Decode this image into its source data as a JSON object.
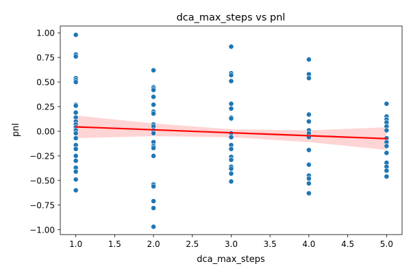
{
  "chart_data": {
    "type": "scatter",
    "title": "dca_max_steps vs pnl",
    "xlabel": "dca_max_steps",
    "ylabel": "pnl",
    "xlim": [
      0.8,
      5.2
    ],
    "ylim": [
      -1.05,
      1.07
    ],
    "xticks": [
      "1.0",
      "1.5",
      "2.0",
      "2.5",
      "3.0",
      "3.5",
      "4.0",
      "4.5",
      "5.0"
    ],
    "yticks": [
      "-1.00",
      "-0.75",
      "-0.50",
      "-0.25",
      "0.00",
      "0.25",
      "0.50",
      "0.75",
      "1.00"
    ],
    "grid": false,
    "series": [
      {
        "kind": "points",
        "color": "#1f77b4",
        "points": [
          [
            1,
            0.98
          ],
          [
            1,
            0.78
          ],
          [
            1,
            0.76
          ],
          [
            1,
            0.54
          ],
          [
            1,
            0.52
          ],
          [
            1,
            0.5
          ],
          [
            1,
            0.27
          ],
          [
            1,
            0.26
          ],
          [
            1,
            0.19
          ],
          [
            1,
            0.14
          ],
          [
            1,
            0.1
          ],
          [
            1,
            0.07
          ],
          [
            1,
            0.04
          ],
          [
            1,
            0.01
          ],
          [
            1,
            -0.02
          ],
          [
            1,
            -0.07
          ],
          [
            1,
            -0.14
          ],
          [
            1,
            -0.18
          ],
          [
            1,
            -0.25
          ],
          [
            1,
            -0.3
          ],
          [
            1,
            -0.37
          ],
          [
            1,
            -0.41
          ],
          [
            1,
            -0.49
          ],
          [
            1,
            -0.6
          ],
          [
            2,
            0.62
          ],
          [
            2,
            0.45
          ],
          [
            2,
            0.44
          ],
          [
            2,
            0.42
          ],
          [
            2,
            0.35
          ],
          [
            2,
            0.27
          ],
          [
            2,
            0.2
          ],
          [
            2,
            0.18
          ],
          [
            2,
            0.07
          ],
          [
            2,
            0.05
          ],
          [
            2,
            0.01
          ],
          [
            2,
            -0.02
          ],
          [
            2,
            -0.11
          ],
          [
            2,
            -0.15
          ],
          [
            2,
            -0.17
          ],
          [
            2,
            -0.25
          ],
          [
            2,
            -0.54
          ],
          [
            2,
            -0.56
          ],
          [
            2,
            -0.71
          ],
          [
            2,
            -0.78
          ],
          [
            2,
            -0.97
          ],
          [
            3,
            0.86
          ],
          [
            3,
            0.59
          ],
          [
            3,
            0.57
          ],
          [
            3,
            0.51
          ],
          [
            3,
            0.28
          ],
          [
            3,
            0.23
          ],
          [
            3,
            0.14
          ],
          [
            3,
            0.13
          ],
          [
            3,
            -0.02
          ],
          [
            3,
            -0.06
          ],
          [
            3,
            -0.14
          ],
          [
            3,
            -0.18
          ],
          [
            3,
            -0.26
          ],
          [
            3,
            -0.29
          ],
          [
            3,
            -0.36
          ],
          [
            3,
            -0.38
          ],
          [
            3,
            -0.43
          ],
          [
            3,
            -0.51
          ],
          [
            4,
            0.73
          ],
          [
            4,
            0.58
          ],
          [
            4,
            0.54
          ],
          [
            4,
            0.17
          ],
          [
            4,
            0.1
          ],
          [
            4,
            0.01
          ],
          [
            4,
            -0.02
          ],
          [
            4,
            -0.06
          ],
          [
            4,
            -0.19
          ],
          [
            4,
            -0.34
          ],
          [
            4,
            -0.45
          ],
          [
            4,
            -0.48
          ],
          [
            4,
            -0.53
          ],
          [
            4,
            -0.63
          ],
          [
            5,
            0.28
          ],
          [
            5,
            0.15
          ],
          [
            5,
            0.12
          ],
          [
            5,
            0.09
          ],
          [
            5,
            0.05
          ],
          [
            5,
            0.01
          ],
          [
            5,
            -0.07
          ],
          [
            5,
            -0.11
          ],
          [
            5,
            -0.15
          ],
          [
            5,
            -0.22
          ],
          [
            5,
            -0.32
          ],
          [
            5,
            -0.36
          ],
          [
            5,
            -0.4
          ],
          [
            5,
            -0.46
          ]
        ]
      },
      {
        "kind": "regression-line",
        "color": "#ff0000",
        "x": [
          1,
          5
        ],
        "y": [
          0.045,
          -0.075
        ]
      },
      {
        "kind": "confidence-band",
        "color": "#ffcccc",
        "x": [
          1,
          2,
          3,
          4,
          5
        ],
        "upper": [
          0.16,
          0.08,
          0.02,
          0.01,
          0.04
        ],
        "lower": [
          -0.07,
          -0.05,
          -0.06,
          -0.11,
          -0.19
        ]
      }
    ]
  }
}
